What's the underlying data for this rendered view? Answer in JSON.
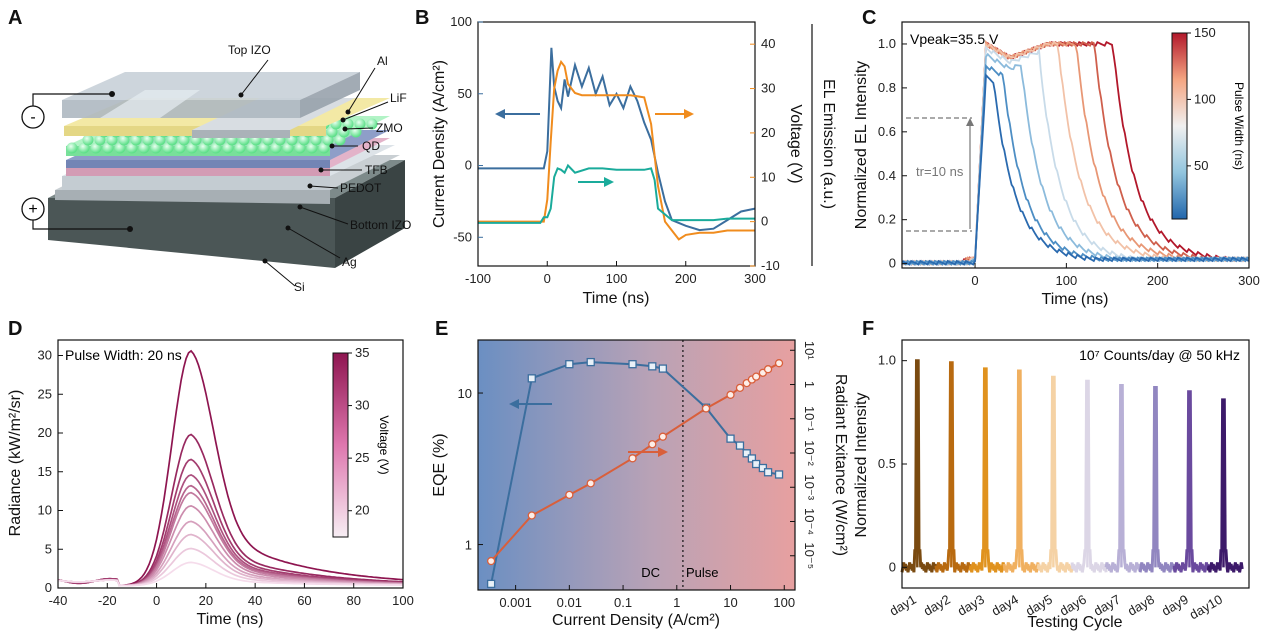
{
  "figure": {
    "panel_labels": [
      "A",
      "B",
      "C",
      "D",
      "E",
      "F"
    ]
  },
  "panel_a": {
    "layers": [
      "Top IZO",
      "Al",
      "LiF",
      "ZMO",
      "QD",
      "TFB",
      "PEDOT",
      "Bottom IZO",
      "Ag",
      "Si"
    ],
    "terminal_minus": "-",
    "terminal_plus": "+"
  },
  "chart_data": [
    {
      "panel": "B",
      "type": "line",
      "xlabel": "Time (ns)",
      "ylabel_left": "Current Density (A/cm²)",
      "ylabel_right": "Voltage (V)",
      "ylabel_far_right": "EL Emission (a.u.)",
      "xlim": [
        -100,
        300
      ],
      "ylim_left": [
        -70,
        100
      ],
      "ylim_right": [
        -10,
        45
      ],
      "xticks": [
        "-100",
        "0",
        "100",
        "200",
        "300"
      ],
      "yticks_left": [
        "-50",
        "0",
        "50",
        "100"
      ],
      "yticks_right": [
        "-10",
        "0",
        "10",
        "20",
        "30",
        "40"
      ],
      "colors": {
        "current": "#3b6e9e",
        "voltage": "#f08c1e",
        "el": "#1aab9b"
      },
      "series": [
        {
          "key": "current",
          "x": [
            -100,
            -5,
            0,
            3,
            6,
            10,
            15,
            20,
            25,
            30,
            40,
            50,
            60,
            70,
            80,
            90,
            100,
            110,
            120,
            130,
            140,
            150,
            160,
            170,
            180,
            190,
            200,
            220,
            240,
            260,
            280,
            300
          ],
          "y": [
            -2,
            -2,
            10,
            45,
            82,
            55,
            45,
            40,
            60,
            48,
            70,
            55,
            68,
            50,
            62,
            42,
            50,
            40,
            55,
            45,
            30,
            18,
            -5,
            -25,
            -38,
            -40,
            -42,
            -45,
            -44,
            -38,
            -32,
            -30
          ]
        },
        {
          "key": "voltage",
          "x": [
            -100,
            -5,
            0,
            5,
            10,
            15,
            20,
            25,
            30,
            40,
            50,
            60,
            80,
            100,
            120,
            140,
            150,
            160,
            170,
            180,
            190,
            200,
            220,
            240,
            260,
            280,
            300
          ],
          "y": [
            0,
            0,
            5,
            18,
            30,
            34,
            36,
            35,
            31,
            29,
            28.5,
            28.5,
            28.5,
            28.5,
            28.5,
            28,
            22,
            8,
            0,
            -2,
            -4,
            -3,
            -2.5,
            -2.5,
            -2,
            -2,
            -2
          ]
        },
        {
          "key": "el",
          "x": [
            -100,
            -10,
            -5,
            0,
            5,
            10,
            15,
            20,
            25,
            30,
            40,
            60,
            80,
            100,
            120,
            140,
            150,
            155,
            160,
            180,
            200,
            220,
            240,
            260,
            280,
            300
          ],
          "y": [
            -40,
            -40,
            -36,
            -36,
            -30,
            -8,
            -2,
            -3,
            -5,
            0,
            -5,
            -2,
            -2,
            -3,
            -3,
            -3,
            -2,
            -10,
            -30,
            -38,
            -38,
            -38,
            -38,
            -37,
            -37,
            -37
          ]
        }
      ]
    },
    {
      "panel": "C",
      "type": "line",
      "xlabel": "Time (ns)",
      "ylabel": "Normalized EL Intensity",
      "xlim": [
        -80,
        300
      ],
      "ylim": [
        -0.02,
        1.1
      ],
      "xticks": [
        "0",
        "100",
        "200",
        "300"
      ],
      "yticks": [
        "0",
        "0.2",
        "0.4",
        "0.6",
        "0.8",
        "1.0"
      ],
      "annotation_peak": "Vpeak=35.5 V",
      "annotation_rise": "tr=10 ns",
      "colorbar_label": "Pulse Width (ns)",
      "colorbar_ticks": [
        "50",
        "100",
        "150"
      ],
      "pulse_widths": [
        10,
        20,
        40,
        60,
        80,
        100,
        120,
        140
      ],
      "peaks": [
        0.85,
        0.9,
        0.95,
        0.98,
        1.0,
        1.0,
        1.0,
        1.0
      ]
    },
    {
      "panel": "D",
      "type": "line",
      "xlabel": "Time (ns)",
      "ylabel": "Radiance (kW/m²/sr)",
      "xlim": [
        -40,
        100
      ],
      "ylim": [
        0,
        32
      ],
      "xticks": [
        "-40",
        "-20",
        "0",
        "20",
        "40",
        "60",
        "80",
        "100"
      ],
      "yticks": [
        "0",
        "5",
        "10",
        "15",
        "20",
        "25",
        "30"
      ],
      "annotation": "Pulse Width: 20 ns",
      "colorbar_label": "Voltage (V)",
      "colorbar_ticks": [
        "20",
        "25",
        "30",
        "35"
      ],
      "peaks": [
        30.3,
        19.5,
        16.3,
        14.3,
        12.9,
        12.0,
        10.3,
        8.3,
        6.6,
        4.8,
        3.0
      ]
    },
    {
      "panel": "E",
      "type": "line",
      "xlabel": "Current Density (A/cm²)",
      "ylabel_left": "EQE (%)",
      "ylabel_right": "Radiant Exitance (W/cm²)",
      "x_log": true,
      "xlim_log10": [
        -3.7,
        2.2
      ],
      "xticks": [
        "0.001",
        "0.01",
        "0.1",
        "1",
        "10",
        "100"
      ],
      "ylim_left_log10": [
        -0.3,
        1.35
      ],
      "yticks_left": [
        "1",
        "10"
      ],
      "ylim_right_log10": [
        -6,
        1.3
      ],
      "yticks_right": [
        "10⁻⁵",
        "10⁻⁴",
        "10⁻³",
        "10⁻²",
        "10⁻¹",
        "1",
        "10¹"
      ],
      "divider_x": 1.3,
      "region_left": "DC",
      "region_right": "Pulse",
      "colors": {
        "eqe": "#3b6e9e",
        "exitance": "#d95f3b"
      },
      "series": [
        {
          "key": "eqe",
          "x": [
            0.00035,
            0.002,
            0.01,
            0.025,
            0.15,
            0.35,
            0.55,
            3.5,
            10,
            15,
            20,
            25,
            30,
            40,
            50,
            80
          ],
          "y": [
            0.55,
            12.5,
            15.5,
            16,
            15.5,
            15,
            14.5,
            8,
            5,
            4.5,
            4,
            3.7,
            3.4,
            3.2,
            3.0,
            2.9
          ]
        },
        {
          "key": "exitance",
          "x": [
            0.00035,
            0.002,
            0.01,
            0.025,
            0.15,
            0.35,
            0.55,
            3.5,
            10,
            15,
            20,
            25,
            30,
            40,
            50,
            80
          ],
          "y": [
            7e-06,
            0.00015,
            0.0006,
            0.0013,
            0.007,
            0.018,
            0.03,
            0.2,
            0.5,
            0.8,
            1.1,
            1.4,
            1.7,
            2.2,
            2.8,
            4.2
          ]
        }
      ]
    },
    {
      "panel": "F",
      "type": "line",
      "xlabel": "Testing Cycle",
      "ylabel": "Normalized Intensity",
      "ylim": [
        -0.1,
        1.1
      ],
      "yticks": [
        "0",
        "0.5",
        "1.0"
      ],
      "annotation": "10⁷ Counts/day @ 50 kHz",
      "categories": [
        "day1",
        "day2",
        "day3",
        "day4",
        "day5",
        "day6",
        "day7",
        "day8",
        "day9",
        "day10"
      ],
      "values": [
        1.0,
        0.99,
        0.96,
        0.95,
        0.92,
        0.9,
        0.88,
        0.87,
        0.85,
        0.81
      ],
      "colors": [
        "#7a4a10",
        "#b86a10",
        "#e0921e",
        "#f0b060",
        "#f5d2a5",
        "#dcd6e6",
        "#b8b0d6",
        "#9186c0",
        "#6a4a9e",
        "#3d1a6a"
      ]
    }
  ]
}
